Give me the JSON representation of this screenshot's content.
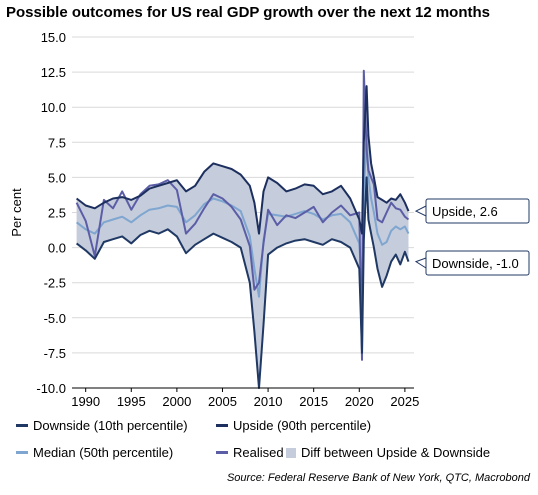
{
  "title": "Possible outcomes for US real GDP growth over the next 12 months",
  "source": "Source: Federal Reserve Bank of New York, QTC, Macrobond",
  "colors": {
    "downside": "#1f3864",
    "upside": "#1c2f5e",
    "median": "#7ea6d0",
    "realised": "#5b5ea6",
    "band": "#c5ccdb",
    "grid": "#d9d9d9",
    "callout_border": "#1f3864"
  },
  "legend": [
    {
      "key": "downside",
      "label": "Downside (10th percentile)",
      "type": "line"
    },
    {
      "key": "upside",
      "label": "Upside (90th percentile)",
      "type": "line"
    },
    {
      "key": "median",
      "label": "Median (50th percentile)",
      "type": "line"
    },
    {
      "key": "realised",
      "label": "Realised",
      "type": "line"
    },
    {
      "key": "band",
      "label": "Diff between Upside & Downside",
      "type": "box"
    }
  ],
  "callouts": {
    "upside": "Upside, 2.6",
    "downside": "Downside, -1.0"
  },
  "chart_data": {
    "type": "line",
    "title": "Possible outcomes for US real GDP growth over the next 12 months",
    "ylabel": "Per cent",
    "xlabel": "",
    "ylim": [
      -10,
      15
    ],
    "xlim": [
      1988.5,
      2026
    ],
    "yticks": [
      15.0,
      12.5,
      10.0,
      7.5,
      5.0,
      2.5,
      0.0,
      -2.5,
      -5.0,
      -7.5,
      -10.0
    ],
    "ytick_labels": [
      "15.0",
      "12.5",
      "10.0",
      "7.5",
      "5.0",
      "2.5",
      "0.0",
      "-2.5",
      "-5.0",
      "-7.5",
      "-10.0"
    ],
    "xticks": [
      1990,
      1995,
      2000,
      2005,
      2010,
      2015,
      2020,
      2025
    ],
    "xtick_labels": [
      "1990",
      "1995",
      "2000",
      "2005",
      "2010",
      "2015",
      "2020",
      "2025"
    ],
    "grid": true,
    "legend_position": "bottom",
    "x": [
      1989,
      1990,
      1991,
      1992,
      1993,
      1994,
      1995,
      1996,
      1997,
      1998,
      1999,
      2000,
      2001,
      2002,
      2003,
      2004,
      2005,
      2006,
      2007,
      2008,
      2008.5,
      2009,
      2009.5,
      2010,
      2011,
      2012,
      2013,
      2014,
      2015,
      2016,
      2017,
      2018,
      2019,
      2020,
      2020.3,
      2020.5,
      2020.8,
      2021,
      2021.3,
      2021.6,
      2022,
      2022.5,
      2023,
      2023.5,
      2024,
      2024.5,
      2025,
      2025.4
    ],
    "series": [
      {
        "name": "Downside (10th percentile)",
        "key": "downside",
        "values": [
          0.3,
          -0.2,
          -0.8,
          0.4,
          0.6,
          0.8,
          0.3,
          0.9,
          1.2,
          1.0,
          1.3,
          0.8,
          -0.4,
          0.2,
          0.6,
          1.0,
          0.7,
          0.4,
          0.0,
          -2.5,
          -6.0,
          -10.0,
          -5.5,
          -0.5,
          0.0,
          0.3,
          0.5,
          0.6,
          0.4,
          0.2,
          0.6,
          0.4,
          0.0,
          -1.5,
          -7.5,
          0.5,
          5.0,
          2.0,
          1.0,
          0.0,
          -1.5,
          -2.8,
          -2.0,
          -1.0,
          -0.5,
          -1.2,
          -0.3,
          -1.0
        ]
      },
      {
        "name": "Upside (90th percentile)",
        "key": "upside",
        "values": [
          3.5,
          3.0,
          2.8,
          3.2,
          3.5,
          3.6,
          3.4,
          3.7,
          4.2,
          4.4,
          4.6,
          4.8,
          4.0,
          4.4,
          5.4,
          6.0,
          5.8,
          5.6,
          5.2,
          4.4,
          3.2,
          1.0,
          4.0,
          5.0,
          4.6,
          4.0,
          4.2,
          4.5,
          4.4,
          3.8,
          4.0,
          4.4,
          3.5,
          2.0,
          1.0,
          7.5,
          11.5,
          8.0,
          6.0,
          5.0,
          3.6,
          3.4,
          3.2,
          3.5,
          3.4,
          3.8,
          3.2,
          2.6
        ]
      },
      {
        "name": "Median (50th percentile)",
        "key": "median",
        "values": [
          1.8,
          1.3,
          1.0,
          1.8,
          2.0,
          2.2,
          1.8,
          2.3,
          2.7,
          2.8,
          3.0,
          2.9,
          1.8,
          2.3,
          3.1,
          3.5,
          3.3,
          3.0,
          2.6,
          0.8,
          -1.5,
          -3.5,
          0.5,
          2.4,
          2.3,
          2.2,
          2.4,
          2.6,
          2.4,
          2.0,
          2.3,
          2.4,
          1.8,
          0.3,
          -3.0,
          4.0,
          8.0,
          5.0,
          3.5,
          2.5,
          1.0,
          0.2,
          0.4,
          1.2,
          1.5,
          1.3,
          1.5,
          1.0
        ]
      },
      {
        "name": "Realised",
        "key": "realised",
        "values": [
          3.2,
          1.9,
          -0.6,
          3.4,
          2.8,
          4.0,
          2.7,
          3.8,
          4.4,
          4.5,
          4.8,
          4.1,
          1.0,
          1.7,
          2.8,
          3.8,
          3.5,
          2.9,
          2.0,
          0.1,
          -3.0,
          -2.5,
          0.3,
          2.7,
          1.6,
          2.3,
          2.1,
          2.5,
          2.9,
          1.8,
          2.5,
          3.0,
          2.3,
          2.5,
          -8.0,
          12.6,
          7.0,
          5.5,
          5.0,
          4.5,
          2.0,
          1.8,
          2.5,
          3.2,
          2.8,
          2.7,
          2.2,
          2.0
        ]
      }
    ]
  }
}
